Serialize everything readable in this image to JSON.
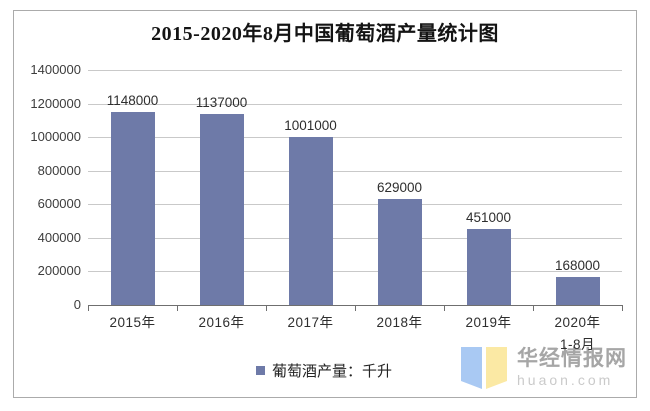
{
  "chart_data": {
    "type": "bar",
    "title": "2015-2020年8月中国葡萄酒产量统计图",
    "categories": [
      "2015年",
      "2016年",
      "2017年",
      "2018年",
      "2019年",
      "2020年"
    ],
    "category_sublabels": [
      "",
      "",
      "",
      "",
      "",
      "1-8月"
    ],
    "values": [
      1148000,
      1137000,
      1001000,
      629000,
      451000,
      168000
    ],
    "data_labels": [
      "1148000",
      "1137000",
      "1001000",
      "629000",
      "451000",
      "168000"
    ],
    "xlabel": "",
    "ylabel": "",
    "ylim": [
      0,
      1400000
    ],
    "yticks": [
      0,
      200000,
      400000,
      600000,
      800000,
      1000000,
      1200000,
      1400000
    ],
    "ytick_labels": [
      "0",
      "200000",
      "400000",
      "600000",
      "800000",
      "1000000",
      "1200000",
      "1400000"
    ],
    "grid": true,
    "legend_position": "bottom",
    "legend": "葡萄酒产量：千升"
  },
  "legend": {
    "label": "葡萄酒产量：千升"
  },
  "colors": {
    "bar": "#6e7aa8",
    "gridline": "#c9c9c9",
    "axis": "#6f6f6f",
    "logo_blue": "#a9c9f3",
    "logo_yellow": "#fbe9a4"
  },
  "watermark": {
    "site_name": "华经情报网",
    "site_domain": "huaon.com"
  }
}
